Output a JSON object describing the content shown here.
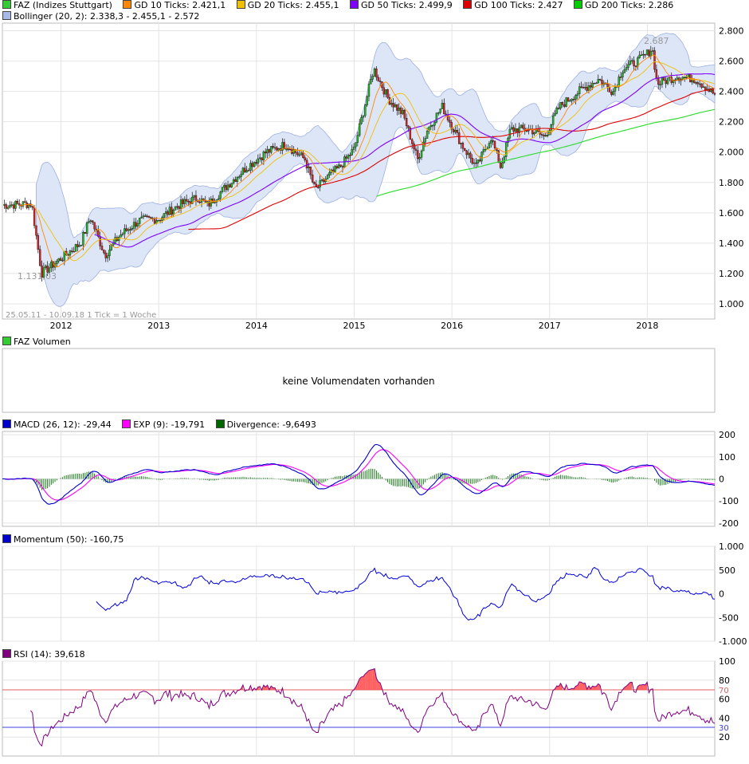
{
  "legend_main": {
    "items": [
      {
        "label": "FAZ (Indizes Stuttgart)",
        "color": "#2a2a2a"
      },
      {
        "label": "GD 10 Ticks: 2.421,1",
        "color": "#ff8800"
      },
      {
        "label": "GD 20 Ticks: 2.455,1",
        "color": "#f0c000"
      },
      {
        "label": "GD 50 Ticks: 2.499,9",
        "color": "#8000ff"
      },
      {
        "label": "GD 100 Ticks: 2.427",
        "color": "#e00000"
      },
      {
        "label": "GD 200 Ticks: 2.286",
        "color": "#00cc00"
      }
    ],
    "bollinger": {
      "label": "Bollinger (20, 2): 2.338,3 - 2.455,1 - 2.572",
      "color": "#a8b8e8"
    }
  },
  "main_chart": {
    "y_ticks": [
      "2.800",
      "2.600",
      "2.400",
      "2.200",
      "2.000",
      "1.800",
      "1.600",
      "1.400",
      "1.200",
      "1.000"
    ],
    "y_values": [
      2800,
      2600,
      2400,
      2200,
      2000,
      1800,
      1600,
      1400,
      1200,
      1000
    ],
    "x_labels": [
      "2012",
      "2013",
      "2014",
      "2015",
      "2016",
      "2017",
      "2018"
    ],
    "high_label": "2.687",
    "low_label": "1.131,03",
    "range_note": "25.05.11 - 10.09.18    1 Tick = 1 Woche"
  },
  "volume_panel": {
    "legend": "FAZ Volumen",
    "message": "keine Volumendaten vorhanden"
  },
  "macd_panel": {
    "legend": [
      {
        "label": "MACD (26, 12): -29,44",
        "color": "#0000cc"
      },
      {
        "label": "EXP (9): -19,791",
        "color": "#ff00ff"
      },
      {
        "label": "Divergence: -9,6493",
        "color": "#006600"
      }
    ],
    "y_ticks": [
      "200",
      "100",
      "0",
      "-100",
      "-200"
    ]
  },
  "momentum_panel": {
    "legend": {
      "label": "Momentum (50): -160,75",
      "color": "#0000cc"
    },
    "y_ticks": [
      "1.000",
      "500",
      "0",
      "-500",
      "-1.000"
    ]
  },
  "rsi_panel": {
    "legend": {
      "label": "RSI (14): 39,618",
      "color": "#800080"
    },
    "y_ticks": [
      "100",
      "80",
      "60",
      "40",
      "20"
    ],
    "upper_label": "70",
    "lower_label": "30"
  },
  "chart_data": {
    "type": "candlestick",
    "title": "FAZ (Indizes Stuttgart)",
    "date_range": "25.05.11 - 10.09.18",
    "interval": "1 Woche",
    "ylim": [
      900,
      2850
    ],
    "x": [
      2011.4,
      2011.7,
      2011.8,
      2012.0,
      2012.2,
      2012.3,
      2012.45,
      2012.6,
      2012.8,
      2013.0,
      2013.2,
      2013.4,
      2013.5,
      2013.7,
      2013.9,
      2014.1,
      2014.3,
      2014.5,
      2014.6,
      2014.75,
      2014.85,
      2015.0,
      2015.2,
      2015.35,
      2015.5,
      2015.65,
      2015.75,
      2015.9,
      2016.1,
      2016.25,
      2016.4,
      2016.5,
      2016.6,
      2016.8,
      2016.95,
      2017.1,
      2017.3,
      2017.5,
      2017.65,
      2017.75,
      2017.9,
      2018.0,
      2018.05,
      2018.1,
      2018.3,
      2018.5,
      2018.69
    ],
    "series": [
      {
        "name": "FAZ close",
        "values": [
          1650,
          1660,
          1200,
          1300,
          1400,
          1570,
          1320,
          1450,
          1550,
          1560,
          1650,
          1700,
          1650,
          1780,
          1900,
          2000,
          2050,
          1950,
          1750,
          1850,
          1900,
          2020,
          2550,
          2350,
          2250,
          1950,
          2150,
          2300,
          2050,
          1900,
          2100,
          1900,
          2150,
          2150,
          2100,
          2300,
          2400,
          2480,
          2400,
          2550,
          2600,
          2650,
          2687,
          2450,
          2500,
          2480,
          2380
        ]
      }
    ],
    "high": 2687,
    "low": 1131.03,
    "moving_averages": {
      "GD 10": 2421.1,
      "GD 20": 2455.1,
      "GD 50": 2499.9,
      "GD 100": 2427,
      "GD 200": 2286
    },
    "bollinger": {
      "lower": 2338.3,
      "middle": 2455.1,
      "upper": 2572
    },
    "macd": {
      "macd": -29.44,
      "signal": -19.791,
      "divergence": -9.6493
    },
    "momentum": -160.75,
    "rsi": 39.618
  }
}
